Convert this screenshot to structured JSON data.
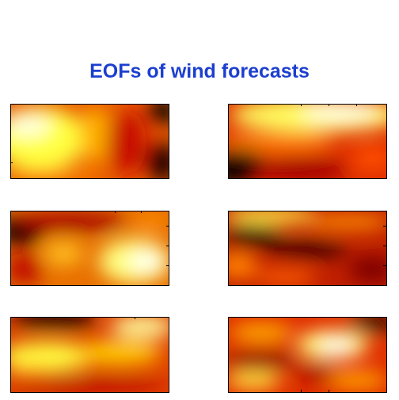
{
  "title": "EOFs of wind forecasts"
}
